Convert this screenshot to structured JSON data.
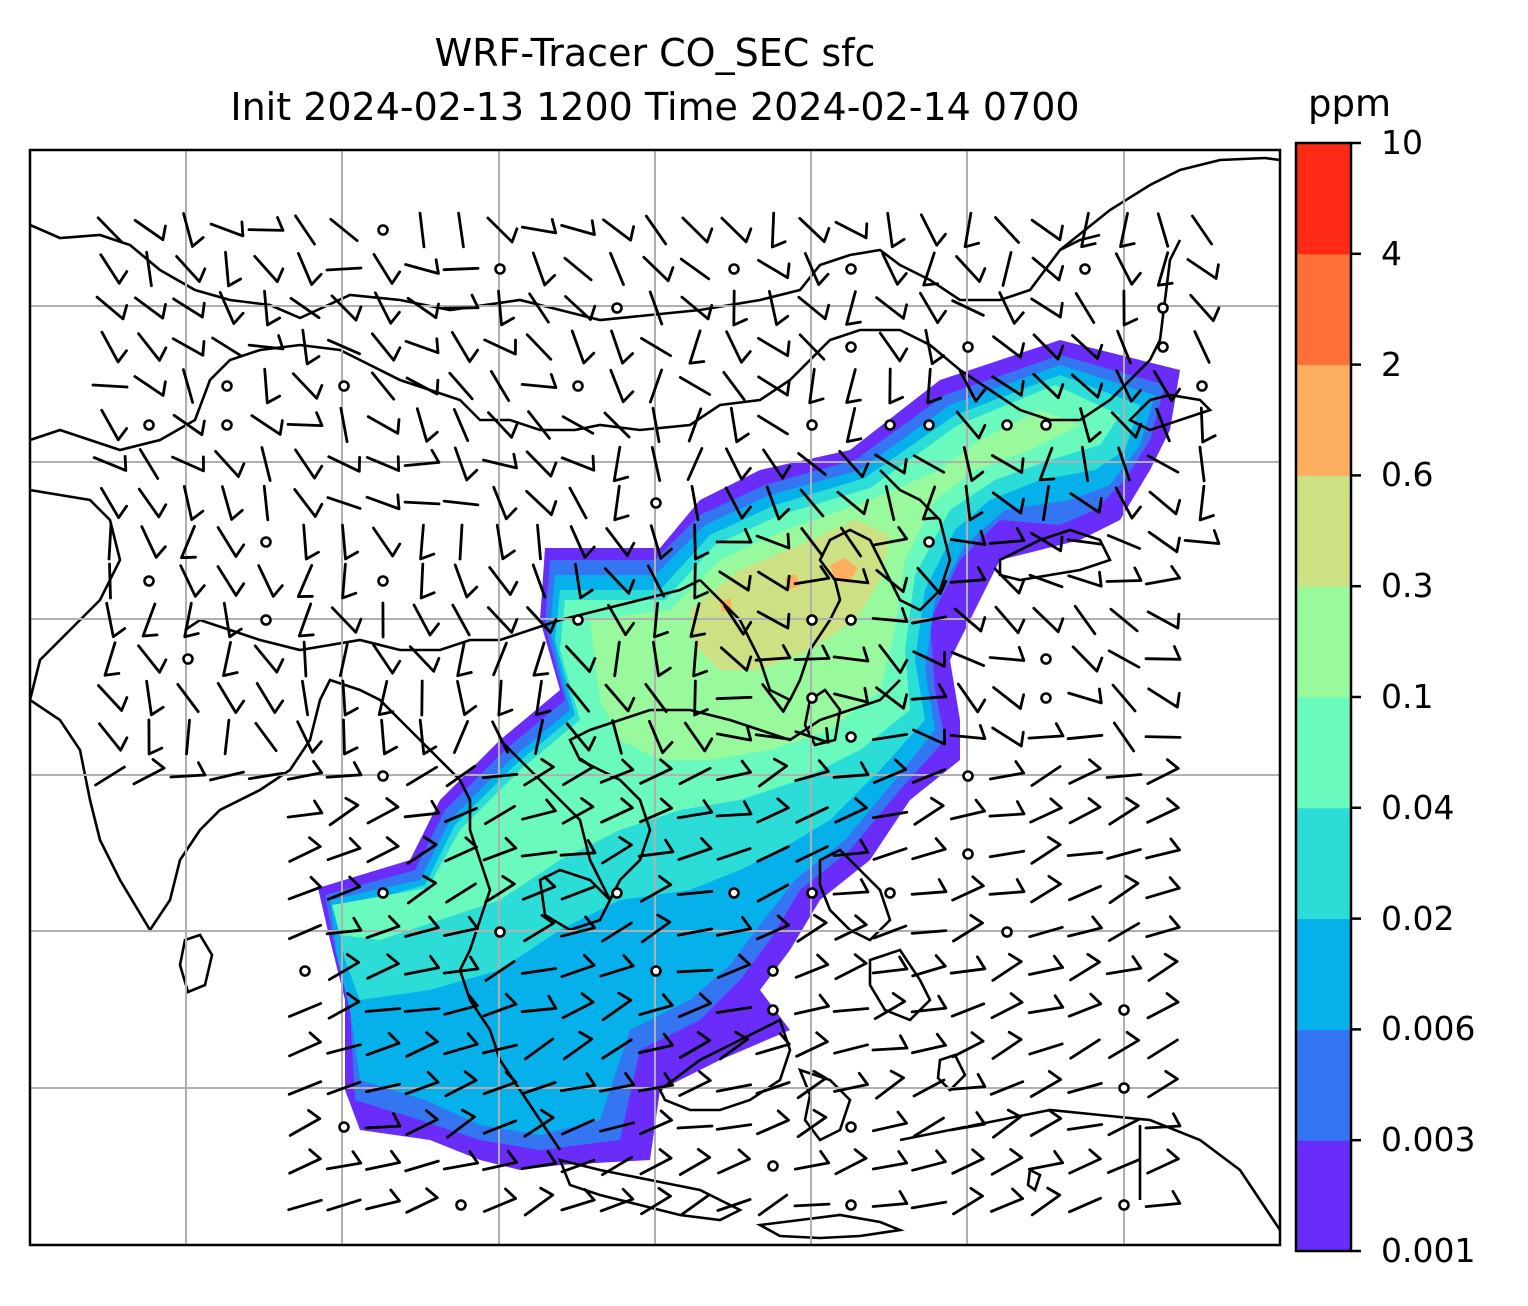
{
  "title": {
    "line1": "WRF-Tracer CO_SEC sfc",
    "line2": "Init 2024-02-13 1200 Time 2024-02-14 0700"
  },
  "colorbar": {
    "unit": "ppm",
    "levels": [
      "0.001",
      "0.003",
      "0.006",
      "0.02",
      "0.04",
      "0.1",
      "0.3",
      "0.6",
      "2",
      "4",
      "10"
    ],
    "colors": [
      "#6a2cf8",
      "#3476f2",
      "#06b0ea",
      "#2cdcd6",
      "#6afabd",
      "#98fa9c",
      "#cde184",
      "#fdaf5f",
      "#fe7036",
      "#fe2a16"
    ]
  },
  "map": {
    "background": "#ffffff",
    "coastline_color": "#000000",
    "gridline_color": "#b0b0b0",
    "wind_barb_color": "#000000"
  }
}
